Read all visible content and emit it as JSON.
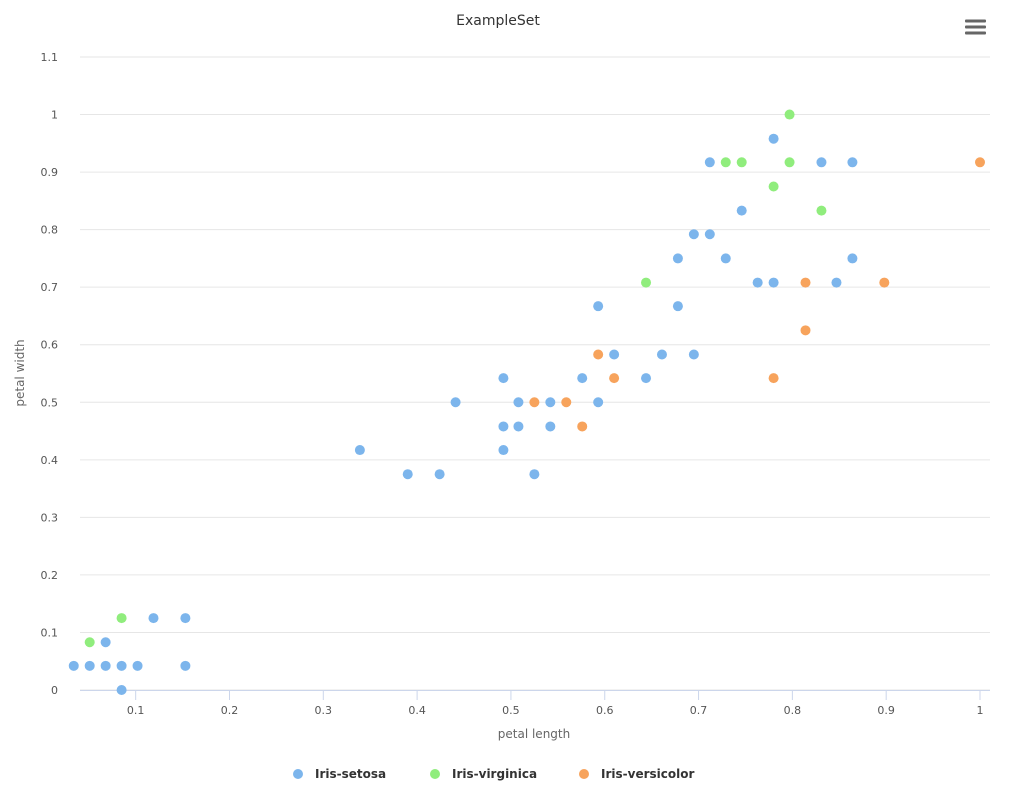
{
  "chart_data": {
    "type": "scatter",
    "title": "ExampleSet",
    "xlabel": "petal length",
    "ylabel": "petal width",
    "xlim": [
      0.03,
      1.0
    ],
    "ylim": [
      0,
      1.1
    ],
    "x_ticks": [
      0.1,
      0.2,
      0.3,
      0.4,
      0.5,
      0.6,
      0.7,
      0.8,
      0.9,
      1
    ],
    "y_ticks": [
      0,
      0.1,
      0.2,
      0.3,
      0.4,
      0.5,
      0.6,
      0.7,
      0.8,
      0.9,
      1,
      1.1
    ],
    "grid": "horizontal",
    "legend_position": "bottom-center",
    "series": [
      {
        "name": "Iris-setosa",
        "color": "#7cb5ec",
        "points": [
          [
            0.034,
            0.042
          ],
          [
            0.051,
            0.042
          ],
          [
            0.068,
            0.042
          ],
          [
            0.068,
            0.083
          ],
          [
            0.085,
            0.042
          ],
          [
            0.085,
            0.0
          ],
          [
            0.102,
            0.042
          ],
          [
            0.119,
            0.125
          ],
          [
            0.153,
            0.125
          ],
          [
            0.153,
            0.042
          ],
          [
            0.339,
            0.417
          ],
          [
            0.39,
            0.375
          ],
          [
            0.424,
            0.375
          ],
          [
            0.441,
            0.5
          ],
          [
            0.492,
            0.542
          ],
          [
            0.492,
            0.458
          ],
          [
            0.492,
            0.417
          ],
          [
            0.508,
            0.5
          ],
          [
            0.508,
            0.458
          ],
          [
            0.525,
            0.375
          ],
          [
            0.542,
            0.5
          ],
          [
            0.542,
            0.458
          ],
          [
            0.576,
            0.542
          ],
          [
            0.593,
            0.667
          ],
          [
            0.593,
            0.5
          ],
          [
            0.61,
            0.583
          ],
          [
            0.644,
            0.542
          ],
          [
            0.661,
            0.583
          ],
          [
            0.678,
            0.75
          ],
          [
            0.678,
            0.667
          ],
          [
            0.695,
            0.792
          ],
          [
            0.695,
            0.583
          ],
          [
            0.712,
            0.917
          ],
          [
            0.712,
            0.792
          ],
          [
            0.729,
            0.75
          ],
          [
            0.746,
            0.833
          ],
          [
            0.763,
            0.708
          ],
          [
            0.78,
            0.958
          ],
          [
            0.78,
            0.708
          ],
          [
            0.831,
            0.917
          ],
          [
            0.847,
            0.708
          ],
          [
            0.864,
            0.917
          ],
          [
            0.864,
            0.75
          ]
        ]
      },
      {
        "name": "Iris-virginica",
        "color": "#90ed7d",
        "points": [
          [
            0.051,
            0.083
          ],
          [
            0.085,
            0.125
          ],
          [
            0.644,
            0.708
          ],
          [
            0.729,
            0.917
          ],
          [
            0.746,
            0.917
          ],
          [
            0.78,
            0.875
          ],
          [
            0.797,
            1.0
          ],
          [
            0.797,
            0.917
          ],
          [
            0.831,
            0.833
          ]
        ]
      },
      {
        "name": "Iris-versicolor",
        "color": "#f7a35c",
        "points": [
          [
            0.525,
            0.5
          ],
          [
            0.559,
            0.5
          ],
          [
            0.576,
            0.458
          ],
          [
            0.593,
            0.583
          ],
          [
            0.61,
            0.542
          ],
          [
            0.78,
            0.542
          ],
          [
            0.814,
            0.708
          ],
          [
            0.814,
            0.625
          ],
          [
            0.898,
            0.708
          ],
          [
            1.0,
            0.917
          ]
        ]
      }
    ]
  },
  "colors": {
    "gridline": "#e6e6e6",
    "axis_line": "#ccd6eb",
    "menu_icon": "#666666"
  },
  "menu": {
    "icon": "hamburger-menu-icon"
  }
}
